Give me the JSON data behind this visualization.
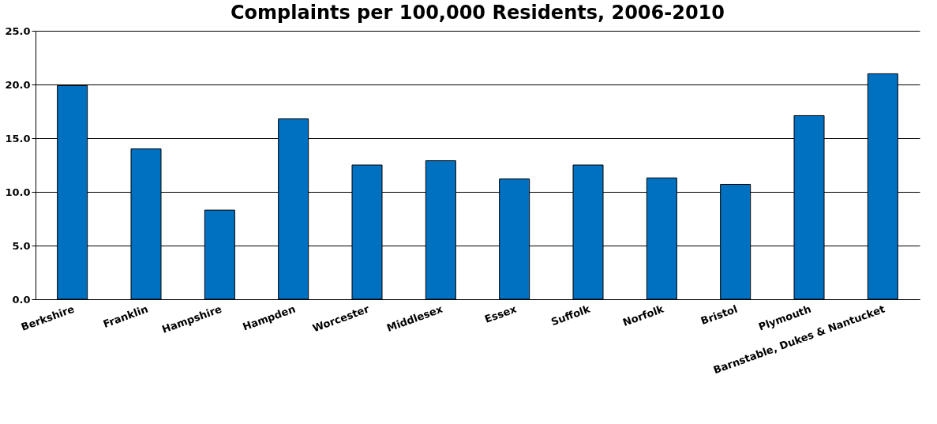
{
  "chart_data": {
    "type": "bar",
    "title": "Complaints per 100,000 Residents, 2006-2010",
    "categories": [
      "Berkshire",
      "Franklin",
      "Hampshire",
      "Hampden",
      "Worcester",
      "Middlesex",
      "Essex",
      "Suffolk",
      "Norfolk",
      "Bristol",
      "Plymouth",
      "Barnstable, Dukes & Nantucket"
    ],
    "values": [
      19.9,
      14.0,
      8.3,
      16.8,
      12.5,
      12.9,
      11.2,
      12.5,
      11.3,
      10.7,
      17.1,
      21.0
    ],
    "color": "#0070c0",
    "ylim": [
      0,
      25
    ],
    "yticks": [
      {
        "value": 0,
        "label": "0.0"
      },
      {
        "value": 5,
        "label": "5.0"
      },
      {
        "value": 10,
        "label": "10.0"
      },
      {
        "value": 15,
        "label": "15.0"
      },
      {
        "value": 20,
        "label": "20.0"
      },
      {
        "value": 25,
        "label": "25.0"
      }
    ],
    "grid": "y"
  }
}
